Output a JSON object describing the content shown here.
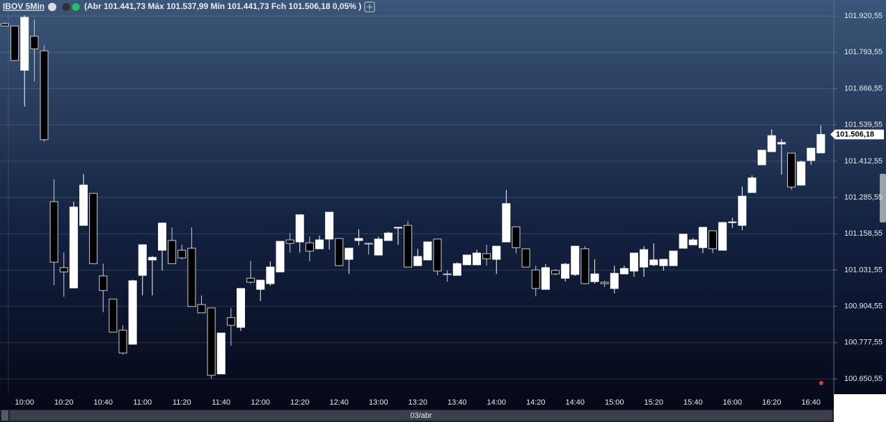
{
  "chart_data": {
    "type": "candlestick",
    "title": "IBOV 5Min",
    "subtitle": "(Abr 101.441,73 Máx 101.537,99 Mín 101.441,73 Fch 101.506,18 0,05% )",
    "x_label": "03/abr",
    "last_price_label": "101.506,18",
    "up_color": "#ffffff",
    "down_color": "#000000",
    "grid": true,
    "ylim": [
      100597,
      101933
    ],
    "yticks": [
      {
        "value": 101920.55,
        "label": "101.920,55"
      },
      {
        "value": 101793.55,
        "label": "101.793,55"
      },
      {
        "value": 101666.55,
        "label": "101.666,55"
      },
      {
        "value": 101539.55,
        "label": "101.539,55"
      },
      {
        "value": 101412.55,
        "label": "101.412,55"
      },
      {
        "value": 101285.55,
        "label": "101.285,55"
      },
      {
        "value": 101158.55,
        "label": "101.158,55"
      },
      {
        "value": 101031.55,
        "label": "101.031,55"
      },
      {
        "value": 100904.55,
        "label": "100.904,55"
      },
      {
        "value": 100777.55,
        "label": "100.777,55"
      },
      {
        "value": 100650.55,
        "label": "100.650,55"
      }
    ],
    "categories": [
      null,
      null,
      "10:00",
      null,
      null,
      null,
      "10:20",
      null,
      null,
      null,
      "10:40",
      null,
      null,
      null,
      "11:00",
      null,
      null,
      null,
      "11:20",
      null,
      null,
      null,
      "11:40",
      null,
      null,
      null,
      "12:00",
      null,
      null,
      null,
      "12:20",
      null,
      null,
      null,
      "12:40",
      null,
      null,
      null,
      "13:00",
      null,
      null,
      null,
      "13:20",
      null,
      null,
      null,
      "13:40",
      null,
      null,
      null,
      "14:00",
      null,
      null,
      null,
      "14:20",
      null,
      null,
      null,
      "14:40",
      null,
      null,
      null,
      "15:00",
      null,
      null,
      null,
      "15:20",
      null,
      null,
      null,
      "15:40",
      null,
      null,
      null,
      "16:00",
      null,
      null,
      null,
      "16:20",
      null,
      null,
      null,
      "16:40",
      null
    ],
    "open": [
      101894,
      101886,
      101731,
      101850,
      101799,
      101271,
      101040,
      100969,
      101188,
      101300,
      101011,
      100930,
      100821,
      100772,
      101013,
      101067,
      101101,
      101135,
      101101,
      101108,
      100911,
      100899,
      100668,
      100865,
      100831,
      101003,
      100964,
      100984,
      101025,
      101137,
      101130,
      101127,
      101106,
      101140,
      101142,
      101069,
      101135,
      101125,
      101084,
      101135,
      101179,
      101188,
      101047,
      101067,
      101140,
      101018,
      101013,
      101050,
      101050,
      101089,
      101069,
      101130,
      101183,
      101106,
      101032,
      100964,
      101030,
      101003,
      101016,
      101106,
      100991,
      100989,
      100967,
      101018,
      101028,
      101042,
      101050,
      101047,
      101047,
      101108,
      101120,
      101110,
      101169,
      101101,
      101198,
      101188,
      101303,
      101400,
      101446,
      101473,
      101441,
      101329,
      101415,
      101441.73
    ],
    "high": [
      101899,
      101886,
      101923,
      101908,
      101818,
      101349,
      101093,
      101271,
      101368,
      101300,
      101054,
      100930,
      100838,
      100998,
      101120,
      101081,
      101198,
      101181,
      101120,
      101181,
      100943,
      100899,
      100811,
      100899,
      100967,
      101064,
      100996,
      101062,
      101132,
      101161,
      101225,
      101149,
      101152,
      101234,
      101142,
      101108,
      101174,
      101127,
      101149,
      101166,
      101183,
      101203,
      101106,
      101130,
      101140,
      101030,
      101059,
      101084,
      101103,
      101120,
      101115,
      101312,
      101183,
      101106,
      101047,
      101052,
      101035,
      101057,
      101115,
      101115,
      101069,
      100994,
      101047,
      101047,
      101091,
      101115,
      101125,
      101069,
      101098,
      101157,
      101144,
      101181,
      101169,
      101198,
      101215,
      101324,
      101363,
      101451,
      101524,
      101490,
      101441,
      101415,
      101458,
      101537.99
    ],
    "low": [
      101884,
      101765,
      101604,
      101692,
      101480,
      100979,
      100938,
      100969,
      101188,
      101054,
      100884,
      100814,
      100736,
      100772,
      100943,
      100943,
      101030,
      101054,
      101069,
      100904,
      100882,
      100651,
      100668,
      100767,
      100818,
      100984,
      100923,
      100977,
      101025,
      101093,
      101093,
      101062,
      101106,
      101103,
      101047,
      101018,
      101118,
      101086,
      101084,
      101135,
      101120,
      101042,
      101047,
      101067,
      101013,
      100991,
      101013,
      101050,
      101050,
      101047,
      101018,
      101130,
      101091,
      101042,
      100940,
      100964,
      101013,
      100991,
      101011,
      100984,
      100984,
      100972,
      100950,
      101018,
      101008,
      101008,
      101045,
      101030,
      101047,
      101108,
      101120,
      101091,
      101091,
      101101,
      101179,
      101171,
      101303,
      101400,
      101446,
      101366,
      101312,
      101329,
      101400,
      101441.73
    ],
    "close": [
      101886,
      101765,
      101916,
      101806,
      101488,
      101059,
      101025,
      101252,
      101329,
      101054,
      100960,
      100814,
      100741,
      100994,
      101120,
      101076,
      101196,
      101054,
      101074,
      100904,
      100882,
      100663,
      100811,
      100838,
      100967,
      100989,
      100996,
      101042,
      101132,
      101125,
      101225,
      101098,
      101137,
      101234,
      101047,
      101108,
      101142,
      101123,
      101140,
      101161,
      101181,
      101042,
      101079,
      101130,
      101028,
      101016,
      101054,
      101084,
      101091,
      101071,
      101115,
      101264,
      101110,
      101042,
      100967,
      101040,
      101018,
      101052,
      101115,
      100984,
      101018,
      100984,
      101020,
      101037,
      101091,
      101103,
      101067,
      101069,
      101098,
      101157,
      101137,
      101181,
      101106,
      101198,
      101200,
      101290,
      101354,
      101451,
      101502,
      101478,
      101322,
      101410,
      101458,
      101506.18
    ]
  }
}
